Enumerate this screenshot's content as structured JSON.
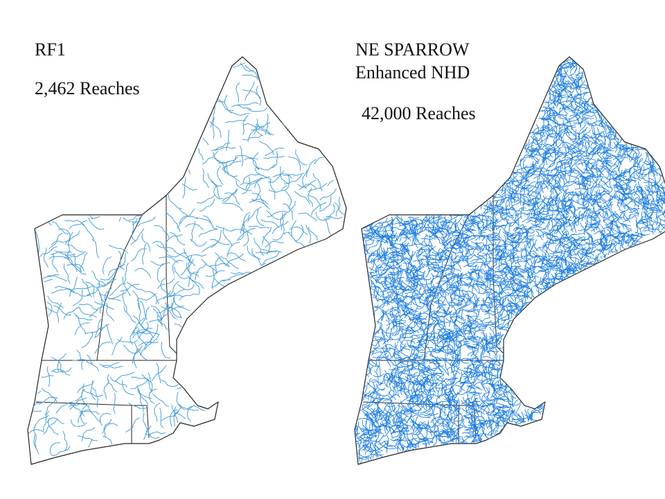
{
  "panels": [
    {
      "title_lines": [
        "RF1"
      ],
      "caption": "2,462 Reaches"
    },
    {
      "title_lines": [
        "NE SPARROW",
        "Enhanced NHD"
      ],
      "caption": "42,000 Reaches"
    }
  ]
}
